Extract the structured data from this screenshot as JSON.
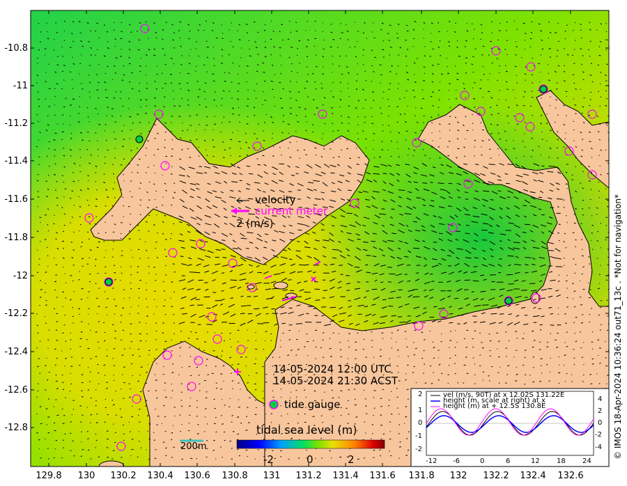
{
  "map": {
    "lat_ticks": [
      "-10.8",
      "-11",
      "-11.2",
      "-11.4",
      "-11.6",
      "-11.8",
      "-12",
      "-12.2",
      "-12.4",
      "-12.6",
      "-12.8"
    ],
    "lon_ticks": [
      "129.8",
      "130",
      "130.2",
      "130.4",
      "130.6",
      "130.8",
      "131",
      "131.2",
      "131.4",
      "131.6",
      "131.8",
      "132",
      "132.2",
      "132.4",
      "132.6"
    ],
    "legend": {
      "velocity": "velocity",
      "current_meter": "current meter",
      "scale": "2 (m/s)"
    },
    "timestamp_utc": "14-05-2024 12:00 UTC",
    "timestamp_local": "14-05-2024 21:30 ACST",
    "tide_gauge_label": "tide gauge",
    "colorbar": {
      "title": "tidal sea level (m)",
      "ticks": [
        "-2",
        "0",
        "2"
      ]
    },
    "scale_bar_label": "200m",
    "side_text": "© IMOS 18-Apr-2024 10:36:24 out71_13c . *Not for navigation*",
    "colors": {
      "land": "#f8c69c",
      "sea_low": "#00cc33",
      "sea_high": "#e8d800",
      "markers": "#ff00ff"
    }
  },
  "inset": {
    "legend": [
      "vel (m/s, 90T) at x 12.02S 131.22E",
      "height (m, scale at right) at x",
      "height (m) at + 12.5S 130.8E"
    ],
    "x_ticks": [
      "-12",
      "-6",
      "0",
      "6",
      "12",
      "18",
      "24"
    ],
    "y_left_ticks": [
      "2",
      "1",
      "0",
      "-1",
      "-2"
    ],
    "y_right_ticks": [
      "4",
      "2",
      "0",
      "-2",
      "-4"
    ]
  }
}
